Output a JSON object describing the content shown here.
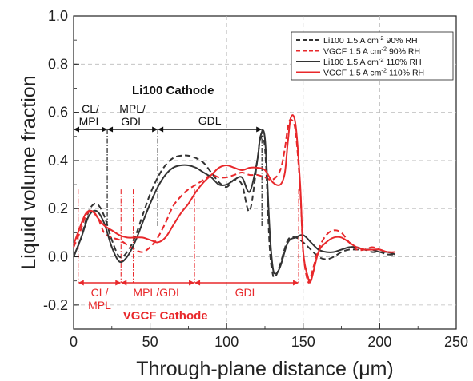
{
  "chart_data": {
    "type": "line",
    "xlabel": "Through-plane distance (μm)",
    "ylabel": "Liquid volume fraction",
    "xlim": [
      0,
      250
    ],
    "ylim": [
      -0.3,
      1.0
    ],
    "x_ticks": [
      "0",
      "50",
      "100",
      "150",
      "200",
      "250"
    ],
    "y_ticks": [
      "-0.2",
      "0.0",
      "0.2",
      "0.4",
      "0.6",
      "0.8",
      "1.0"
    ],
    "grid": true,
    "legend_position": "top-right",
    "legend": [
      {
        "label": "Li100 1.5 A cm",
        "sup": "-2",
        "suffix": " 90% RH",
        "color": "#333333",
        "dash": true
      },
      {
        "label": "VGCF 1.5 A cm",
        "sup": "-2",
        "suffix": " 90% RH",
        "color": "#e8282b",
        "dash": true
      },
      {
        "label": "Li100 1.5 A  cm",
        "sup": "-2",
        "suffix": " 110% RH",
        "color": "#333333",
        "dash": false
      },
      {
        "label": "VGCF 1.5 A cm",
        "sup": "-2",
        "suffix": " 110% RH",
        "color": "#e8282b",
        "dash": false
      }
    ],
    "series": [
      {
        "name": "Li100 1.5 A cm-2 90% RH",
        "color": "#333333",
        "dash": true,
        "x": [
          0,
          5,
          10,
          15,
          20,
          25,
          30,
          35,
          40,
          45,
          50,
          55,
          60,
          65,
          70,
          75,
          80,
          85,
          90,
          95,
          100,
          105,
          110,
          115,
          120,
          122,
          125,
          128,
          130,
          132,
          135,
          140,
          145,
          150,
          155,
          160,
          165,
          170,
          175,
          180,
          185,
          190,
          195,
          200,
          205,
          210
        ],
        "y": [
          0.0,
          0.08,
          0.19,
          0.22,
          0.17,
          0.07,
          0.0,
          0.02,
          0.08,
          0.17,
          0.26,
          0.33,
          0.38,
          0.41,
          0.42,
          0.42,
          0.41,
          0.39,
          0.35,
          0.31,
          0.29,
          0.32,
          0.3,
          0.19,
          0.4,
          0.49,
          0.45,
          0.05,
          -0.07,
          -0.08,
          -0.03,
          0.07,
          0.08,
          0.06,
          0.03,
          0.0,
          -0.01,
          0.0,
          0.02,
          0.03,
          0.03,
          0.03,
          0.02,
          0.02,
          0.01,
          0.01
        ]
      },
      {
        "name": "VGCF 1.5 A cm-2 90% RH",
        "color": "#e8282b",
        "dash": true,
        "x": [
          0,
          4,
          8,
          12,
          16,
          20,
          25,
          30,
          35,
          40,
          45,
          50,
          55,
          60,
          65,
          70,
          75,
          80,
          85,
          90,
          95,
          100,
          105,
          110,
          115,
          120,
          125,
          130,
          135,
          138,
          140,
          142,
          145,
          148,
          150,
          153,
          155,
          160,
          165,
          170,
          175,
          180,
          185,
          190,
          195,
          200,
          205,
          210
        ],
        "y": [
          0.04,
          0.1,
          0.17,
          0.19,
          0.16,
          0.1,
          0.08,
          0.07,
          0.05,
          0.03,
          0.02,
          0.04,
          0.08,
          0.14,
          0.21,
          0.25,
          0.28,
          0.3,
          0.32,
          0.34,
          0.33,
          0.33,
          0.34,
          0.35,
          0.34,
          0.34,
          0.33,
          0.32,
          0.36,
          0.45,
          0.54,
          0.57,
          0.52,
          0.28,
          0.02,
          -0.1,
          -0.08,
          0.03,
          0.09,
          0.11,
          0.1,
          0.06,
          0.03,
          0.03,
          0.04,
          0.03,
          0.02,
          0.02
        ]
      },
      {
        "name": "Li100 1.5 A cm-2 110% RH",
        "color": "#333333",
        "dash": false,
        "x": [
          0,
          5,
          10,
          15,
          20,
          25,
          30,
          35,
          40,
          45,
          50,
          55,
          60,
          65,
          70,
          75,
          80,
          85,
          90,
          95,
          100,
          105,
          110,
          115,
          120,
          122,
          125,
          128,
          130,
          132,
          135,
          140,
          145,
          150,
          155,
          160,
          165,
          170,
          175,
          180,
          185,
          190,
          195,
          200,
          205,
          210
        ],
        "y": [
          0.0,
          0.08,
          0.17,
          0.19,
          0.14,
          0.04,
          -0.02,
          0.0,
          0.06,
          0.14,
          0.22,
          0.29,
          0.34,
          0.37,
          0.38,
          0.38,
          0.37,
          0.35,
          0.33,
          0.3,
          0.3,
          0.32,
          0.33,
          0.27,
          0.4,
          0.5,
          0.49,
          0.12,
          -0.04,
          -0.07,
          -0.04,
          0.06,
          0.08,
          0.09,
          0.06,
          0.03,
          0.02,
          0.02,
          0.03,
          0.04,
          0.04,
          0.03,
          0.03,
          0.02,
          0.02,
          0.01
        ]
      },
      {
        "name": "VGCF 1.5 A cm-2 110% RH",
        "color": "#e8282b",
        "dash": false,
        "x": [
          0,
          4,
          8,
          12,
          16,
          20,
          25,
          30,
          35,
          40,
          45,
          50,
          55,
          60,
          65,
          70,
          75,
          80,
          85,
          90,
          95,
          100,
          105,
          110,
          115,
          120,
          125,
          130,
          135,
          138,
          140,
          142,
          145,
          148,
          150,
          153,
          155,
          160,
          165,
          170,
          175,
          180,
          185,
          190,
          195,
          200,
          205,
          210
        ],
        "y": [
          0.05,
          0.12,
          0.18,
          0.19,
          0.16,
          0.13,
          0.11,
          0.09,
          0.08,
          0.08,
          0.08,
          0.07,
          0.06,
          0.08,
          0.13,
          0.18,
          0.22,
          0.27,
          0.31,
          0.34,
          0.37,
          0.38,
          0.37,
          0.36,
          0.37,
          0.37,
          0.36,
          0.31,
          0.3,
          0.35,
          0.48,
          0.58,
          0.55,
          0.3,
          0.02,
          -0.08,
          -0.1,
          0.02,
          0.06,
          0.08,
          0.08,
          0.06,
          0.04,
          0.03,
          0.03,
          0.03,
          0.02,
          0.02
        ]
      }
    ],
    "annotations": {
      "li100_title": "Li100 Cathode",
      "vgcf_title": "VGCF Cathode",
      "li100_regions": [
        {
          "label": [
            "CL/",
            "MPL"
          ],
          "x0": 0,
          "x1": 22
        },
        {
          "label": [
            "MPL/",
            "GDL"
          ],
          "x0": 22,
          "x1": 55
        },
        {
          "label": [
            "GDL"
          ],
          "x0": 55,
          "x1": 123
        }
      ],
      "vgcf_regions": [
        {
          "label": [
            "CL/",
            "MPL"
          ],
          "x0": 3,
          "x1": 31
        },
        {
          "label": [
            "MPL/GDL"
          ],
          "x0": 31,
          "x1": 79
        },
        {
          "label": [
            "GDL"
          ],
          "x0": 79,
          "x1": 147
        }
      ],
      "li100_dividers": [
        22,
        55,
        123
      ],
      "vgcf_dividers": [
        3,
        31,
        39,
        79,
        147
      ],
      "li100_color": "#111111",
      "vgcf_color": "#e8282b"
    }
  }
}
